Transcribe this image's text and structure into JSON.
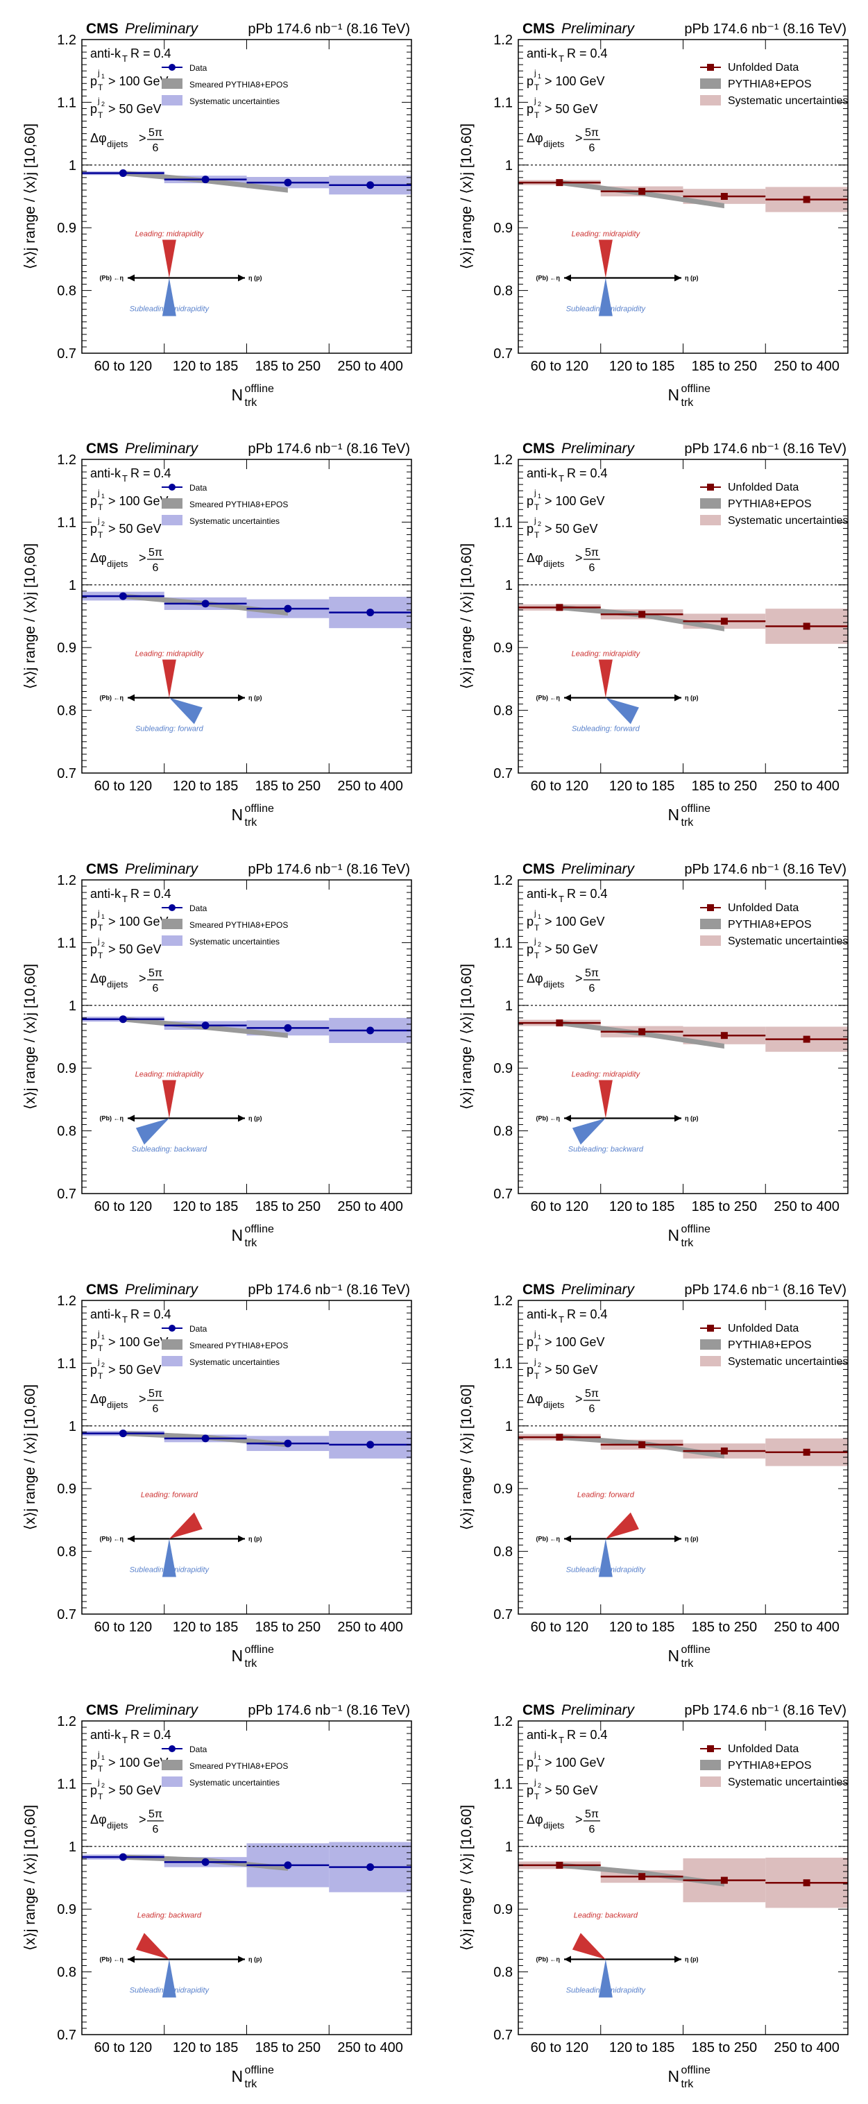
{
  "header": {
    "experiment": "CMS",
    "status": "Preliminary",
    "luminosity": "pPb 174.6 nb⁻¹ (8.16 TeV)"
  },
  "axes": {
    "xlabel_main": "N",
    "xlabel_sup": "offline",
    "xlabel_sub": "trk",
    "ylabel": "⟨x⟩j range / ⟨x⟩j [10,60]",
    "yticks": [
      "1.2",
      "1.1",
      "1",
      "0.9",
      "0.8",
      "0.7"
    ],
    "categories": [
      "60 to 120",
      "120 to 185",
      "185 to 250",
      "250 to 400"
    ]
  },
  "cuts": {
    "algo": "anti-k",
    "algo_sub": "T",
    "radius": "R = 0.4",
    "lead_pt_label": "p",
    "lead_pt_sup": "j",
    "lead_pt_sup2": "1",
    "lead_pt_sub": "T",
    "lead_pt_cut": "> 100 GeV",
    "sub_pt_sup2": "2",
    "sub_pt_cut": "> 50 GeV",
    "dphi_label": "Δφ",
    "dphi_sub": "dijets",
    "dphi_op": ">",
    "dphi_num": "5π",
    "dphi_den": "6"
  },
  "legend_left": {
    "data": "Data",
    "model": "Smeared PYTHIA8+EPOS",
    "syst": "Systematic uncertainties"
  },
  "legend_right": {
    "data": "Unfolded Data",
    "model": "PYTHIA8+EPOS",
    "syst": "Systematic uncertainties"
  },
  "diagram": {
    "pb_label": "(Pb) ←η",
    "p_label": "η (p)"
  },
  "colors": {
    "left_data": "#000099",
    "left_syst": "#b4b4e6",
    "right_data": "#7a0000",
    "right_syst": "#dcbebe",
    "model": "#999999",
    "leading": "#cc3333",
    "subleading": "#5a82cc"
  },
  "chart_data": [
    {
      "type": "line",
      "panel": "row1-left",
      "leading": "Leading: midrapidity",
      "subleading": "Subleading: midrapidity",
      "lead_dir": "mid",
      "sub_dir": "mid",
      "ylim": [
        0.7,
        1.2
      ],
      "categories": [
        "60 to 120",
        "120 to 185",
        "185 to 250",
        "250 to 400"
      ],
      "data": [
        0.987,
        0.977,
        0.972,
        0.968
      ],
      "syst": [
        0.003,
        0.006,
        0.009,
        0.015
      ],
      "model": [
        0.987,
        0.975,
        0.96
      ]
    },
    {
      "type": "line",
      "panel": "row1-right",
      "leading": "Leading: midrapidity",
      "subleading": "Subleading: midrapidity",
      "lead_dir": "mid",
      "sub_dir": "mid",
      "ylim": [
        0.7,
        1.2
      ],
      "categories": [
        "60 to 120",
        "120 to 185",
        "185 to 250",
        "250 to 400"
      ],
      "data": [
        0.972,
        0.958,
        0.95,
        0.945
      ],
      "syst": [
        0.004,
        0.008,
        0.012,
        0.02
      ],
      "model": [
        0.972,
        0.955,
        0.935
      ]
    },
    {
      "type": "line",
      "panel": "row2-left",
      "leading": "Leading: midrapidity",
      "subleading": "Subleading: forward",
      "lead_dir": "mid",
      "sub_dir": "fwd",
      "ylim": [
        0.7,
        1.2
      ],
      "categories": [
        "60 to 120",
        "120 to 185",
        "185 to 250",
        "250 to 400"
      ],
      "data": [
        0.982,
        0.97,
        0.962,
        0.956
      ],
      "syst": [
        0.007,
        0.01,
        0.015,
        0.025
      ],
      "model": [
        0.982,
        0.97,
        0.955
      ]
    },
    {
      "type": "line",
      "panel": "row2-right",
      "leading": "Leading: midrapidity",
      "subleading": "Subleading: forward",
      "lead_dir": "mid",
      "sub_dir": "fwd",
      "ylim": [
        0.7,
        1.2
      ],
      "categories": [
        "60 to 120",
        "120 to 185",
        "185 to 250",
        "250 to 400"
      ],
      "data": [
        0.964,
        0.953,
        0.942,
        0.934
      ],
      "syst": [
        0.005,
        0.008,
        0.012,
        0.028
      ],
      "model": [
        0.964,
        0.952,
        0.93
      ]
    },
    {
      "type": "line",
      "panel": "row3-left",
      "leading": "Leading: midrapidity",
      "subleading": "Subleading: backward",
      "lead_dir": "mid",
      "sub_dir": "bwd",
      "ylim": [
        0.7,
        1.2
      ],
      "categories": [
        "60 to 120",
        "120 to 185",
        "185 to 250",
        "250 to 400"
      ],
      "data": [
        0.978,
        0.968,
        0.964,
        0.96
      ],
      "syst": [
        0.004,
        0.007,
        0.012,
        0.02
      ],
      "model": [
        0.978,
        0.965,
        0.952
      ]
    },
    {
      "type": "line",
      "panel": "row3-right",
      "leading": "Leading: midrapidity",
      "subleading": "Subleading: backward",
      "lead_dir": "mid",
      "sub_dir": "bwd",
      "ylim": [
        0.7,
        1.2
      ],
      "categories": [
        "60 to 120",
        "120 to 185",
        "185 to 250",
        "250 to 400"
      ],
      "data": [
        0.972,
        0.958,
        0.952,
        0.946
      ],
      "syst": [
        0.005,
        0.009,
        0.014,
        0.02
      ],
      "model": [
        0.972,
        0.955,
        0.935
      ]
    },
    {
      "type": "line",
      "panel": "row4-left",
      "leading": "Leading: forward",
      "subleading": "Subleading: midrapidity",
      "lead_dir": "fwd",
      "sub_dir": "mid",
      "ylim": [
        0.7,
        1.2
      ],
      "categories": [
        "60 to 120",
        "120 to 185",
        "185 to 250",
        "250 to 400"
      ],
      "data": [
        0.988,
        0.98,
        0.972,
        0.97
      ],
      "syst": [
        0.004,
        0.006,
        0.012,
        0.022
      ],
      "model": [
        0.988,
        0.982,
        0.97
      ]
    },
    {
      "type": "line",
      "panel": "row4-right",
      "leading": "Leading: forward",
      "subleading": "Subleading: midrapidity",
      "lead_dir": "fwd",
      "sub_dir": "mid",
      "ylim": [
        0.7,
        1.2
      ],
      "categories": [
        "60 to 120",
        "120 to 185",
        "185 to 250",
        "250 to 400"
      ],
      "data": [
        0.982,
        0.97,
        0.96,
        0.958
      ],
      "syst": [
        0.005,
        0.008,
        0.012,
        0.022
      ],
      "model": [
        0.982,
        0.972,
        0.952
      ]
    },
    {
      "type": "line",
      "panel": "row5-left",
      "leading": "Leading: backward",
      "subleading": "Subleading: midrapidity",
      "lead_dir": "bwd",
      "sub_dir": "mid",
      "ylim": [
        0.7,
        1.2
      ],
      "categories": [
        "60 to 120",
        "120 to 185",
        "185 to 250",
        "250 to 400"
      ],
      "data": [
        0.983,
        0.975,
        0.97,
        0.967
      ],
      "syst": [
        0.004,
        0.008,
        0.035,
        0.04
      ],
      "model": [
        0.983,
        0.978,
        0.965
      ]
    },
    {
      "type": "line",
      "panel": "row5-right",
      "leading": "Leading: backward",
      "subleading": "Subleading: midrapidity",
      "lead_dir": "bwd",
      "sub_dir": "mid",
      "ylim": [
        0.7,
        1.2
      ],
      "categories": [
        "60 to 120",
        "120 to 185",
        "185 to 250",
        "250 to 400"
      ],
      "data": [
        0.97,
        0.952,
        0.946,
        0.942
      ],
      "syst": [
        0.006,
        0.01,
        0.035,
        0.04
      ],
      "model": [
        0.97,
        0.958,
        0.94
      ]
    }
  ]
}
